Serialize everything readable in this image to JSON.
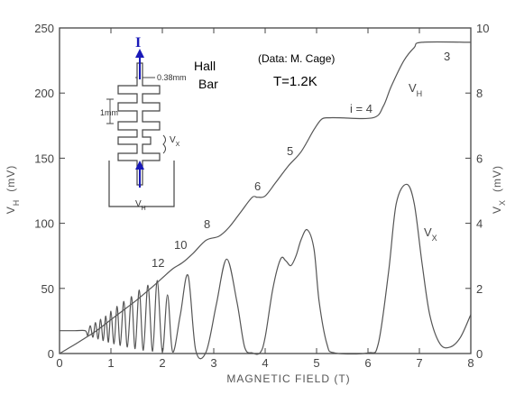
{
  "chart_data": {
    "type": "line",
    "xlabel": "MAGNETIC FIELD  (T)",
    "ylabel_left": "V_H  (mV)",
    "ylabel_right": "V_x  (mV)",
    "xlim": [
      0,
      8
    ],
    "ylim_left": [
      0,
      250
    ],
    "ylim_right": [
      0,
      10
    ],
    "x_ticks": [
      "0",
      "1",
      "2",
      "3",
      "4",
      "5",
      "6",
      "7",
      "8"
    ],
    "y_ticks_left": [
      "0",
      "50",
      "100",
      "150",
      "200",
      "250"
    ],
    "y_ticks_right": [
      "0",
      "2",
      "4",
      "6",
      "8",
      "10"
    ],
    "series": [
      {
        "name": "V_H",
        "axis": "left",
        "x": [
          0,
          0.3,
          0.5,
          0.7,
          1.0,
          1.3,
          1.5,
          1.8,
          2.0,
          2.2,
          2.4,
          2.6,
          2.85,
          3.1,
          3.3,
          3.55,
          3.75,
          3.85,
          4.0,
          4.2,
          4.45,
          4.7,
          4.95,
          5.1,
          5.25,
          5.45,
          6.1,
          6.3,
          6.45,
          6.7,
          6.9,
          7.05,
          8.0
        ],
        "y": [
          0,
          7,
          12,
          17,
          26,
          35,
          41,
          51,
          58,
          65,
          70,
          77,
          87,
          90,
          97,
          110,
          120,
          120,
          121,
          131,
          144,
          155,
          172,
          180,
          181,
          181,
          181,
          190,
          205,
          225,
          235,
          239,
          239
        ]
      },
      {
        "name": "V_x",
        "axis": "right",
        "x": [
          0,
          0.3,
          0.5,
          0.55,
          0.6,
          0.65,
          0.7,
          0.75,
          0.8,
          0.85,
          0.9,
          0.95,
          1.0,
          1.06,
          1.12,
          1.18,
          1.25,
          1.32,
          1.4,
          1.47,
          1.55,
          1.63,
          1.72,
          1.81,
          1.9,
          2.0,
          2.1,
          2.2,
          2.35,
          2.5,
          2.65,
          2.85,
          3.05,
          3.25,
          3.45,
          3.6,
          3.75,
          3.9,
          4.0,
          4.15,
          4.3,
          4.4,
          4.5,
          4.6,
          4.7,
          4.82,
          4.95,
          5.05,
          5.2,
          5.35,
          6.0,
          6.2,
          6.4,
          6.55,
          6.75,
          6.9,
          7.05,
          7.2,
          7.4,
          7.6,
          7.8,
          8.0
        ],
        "y": [
          0.7,
          0.7,
          0.7,
          0.55,
          0.85,
          0.5,
          0.95,
          0.45,
          1.05,
          0.4,
          1.15,
          0.35,
          1.3,
          0.3,
          1.45,
          0.25,
          1.6,
          0.2,
          1.75,
          0.15,
          1.95,
          0.1,
          2.1,
          0.07,
          2.25,
          0.05,
          1.8,
          0.05,
          1.2,
          2.4,
          0.1,
          0.05,
          1.5,
          2.9,
          1.6,
          0.2,
          0.02,
          0.02,
          0.5,
          2.0,
          2.9,
          2.85,
          2.7,
          3.0,
          3.5,
          3.8,
          3.2,
          1.6,
          0.3,
          0.02,
          0.02,
          0.3,
          2.5,
          4.6,
          5.2,
          4.6,
          2.8,
          1.2,
          0.3,
          0.2,
          0.5,
          1.2
        ]
      }
    ],
    "annotations": {
      "label_vh": "V_H",
      "label_vx": "V_x",
      "plateaus": [
        "3",
        "i = 4",
        "5",
        "6",
        "8",
        "10",
        "12"
      ],
      "data_credit": "(Data: M. Cage)",
      "temperature": "T=1.2K",
      "hall_bar": [
        "Hall",
        "Bar"
      ],
      "current": "I",
      "width_dim": "0.38mm",
      "length_dim": "1mm",
      "inset_vx": "V_x",
      "inset_vh": "V_H"
    },
    "grid": false
  },
  "colors": {
    "axis": "#444444",
    "curve": "#555555",
    "current_arrow": "#1a1ab8",
    "background": "#ffffff"
  }
}
